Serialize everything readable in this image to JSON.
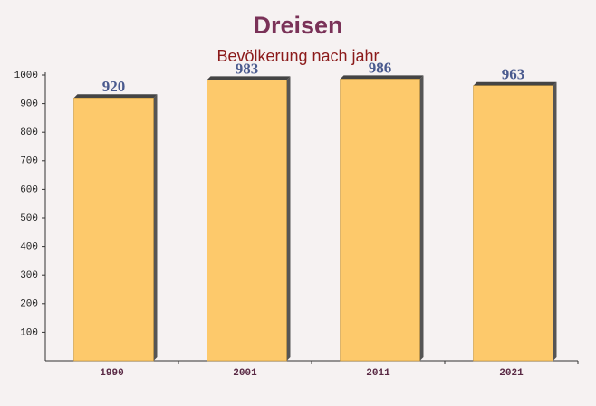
{
  "chart_data": {
    "type": "bar",
    "title": "Dreisen",
    "subtitle": "Bevölkerung nach jahr",
    "categories": [
      "1990",
      "2001",
      "2011",
      "2021"
    ],
    "values": [
      920,
      983,
      986,
      963
    ],
    "color": "#fdc560",
    "ylim": [
      0,
      1000
    ],
    "yticks": [
      100,
      200,
      300,
      400,
      500,
      600,
      700,
      800,
      900,
      1000
    ]
  }
}
